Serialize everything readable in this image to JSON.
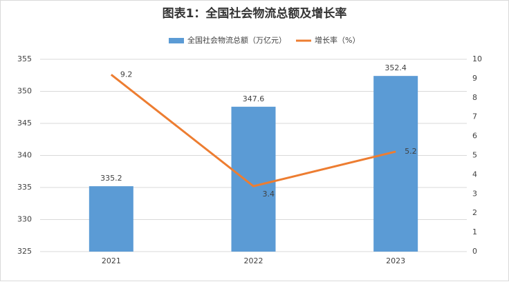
{
  "chart_data": {
    "type": "combo",
    "title": "图表1：全国社会物流总额及增长率",
    "categories": [
      "2021",
      "2022",
      "2023"
    ],
    "series": [
      {
        "name": "全国社会物流总额（万亿元）",
        "type": "bar",
        "color": "#5b9bd5",
        "values": [
          335.2,
          347.6,
          352.4
        ]
      },
      {
        "name": "增长率（%）",
        "type": "line",
        "axis": "y2",
        "color": "#ed7d31",
        "values": [
          9.2,
          3.4,
          5.2
        ]
      }
    ],
    "ylim": [
      325,
      355
    ],
    "yticks": [
      325,
      330,
      335,
      340,
      345,
      350,
      355
    ],
    "y2lim": [
      0,
      10
    ],
    "y2ticks": [
      0,
      1,
      2,
      3,
      4,
      5,
      6,
      7,
      8,
      9,
      10
    ],
    "grid": true,
    "legend": "top"
  }
}
